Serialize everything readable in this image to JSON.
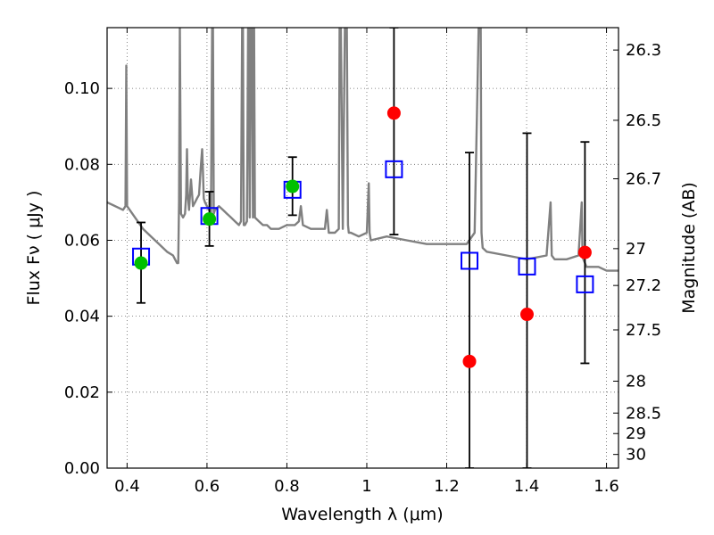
{
  "chart_data": {
    "type": "scatter",
    "xlabel": "Wavelength  λ (μm)",
    "ylabel": "Flux  Fν  ( μJy )",
    "ylabel_right": "Magnitude (AB)",
    "xlim": [
      0.35,
      1.63
    ],
    "ylim": [
      0.0,
      0.116
    ],
    "grid": true,
    "x_ticks": [
      0.4,
      0.6,
      0.8,
      1.0,
      1.2,
      1.4,
      1.6
    ],
    "x_tick_labels": [
      "0.4",
      "0.6",
      "0.8",
      "1",
      "1.2",
      "1.4",
      "1.6"
    ],
    "y_ticks": [
      0.0,
      0.02,
      0.04,
      0.06,
      0.08,
      0.1
    ],
    "y_tick_labels": [
      "0.00",
      "0.02",
      "0.04",
      "0.06",
      "0.08",
      "0.10"
    ],
    "right_ticks": [
      {
        "label": "26.3",
        "flux": 0.1101
      },
      {
        "label": "26.5",
        "flux": 0.0916
      },
      {
        "label": "26.7",
        "flux": 0.0762
      },
      {
        "label": "27",
        "flux": 0.0578
      },
      {
        "label": "27.2",
        "flux": 0.0481
      },
      {
        "label": "27.5",
        "flux": 0.0364
      },
      {
        "label": "28",
        "flux": 0.0229
      },
      {
        "label": "28.5",
        "flux": 0.0145
      },
      {
        "label": "29",
        "flux": 0.0091
      },
      {
        "label": "30",
        "flux": 0.0036
      }
    ],
    "colors": {
      "spectrum": "#808080",
      "model_box": "#0000ff",
      "green_points": "#00c000",
      "red_points": "#ff0000",
      "errorbar": "#000000"
    },
    "series": [
      {
        "marker": "circle",
        "color": "#00c000",
        "points": [
          {
            "x": 0.435,
            "y": 0.054,
            "err_low": 0.0435,
            "err_high": 0.0647
          },
          {
            "x": 0.606,
            "y": 0.0656,
            "err_low": 0.0585,
            "err_high": 0.0728
          },
          {
            "x": 0.814,
            "y": 0.0742,
            "err_low": 0.0666,
            "err_high": 0.0819
          }
        ]
      },
      {
        "marker": "circle",
        "color": "#ff0000",
        "points": [
          {
            "x": 1.068,
            "y": 0.0935,
            "err_low": 0.0615,
            "err_high": 0.116
          },
          {
            "x": 1.257,
            "y": 0.0281,
            "err_low": 0.0,
            "err_high": 0.0831
          },
          {
            "x": 1.401,
            "y": 0.0405,
            "err_low": 0.0,
            "err_high": 0.0882
          },
          {
            "x": 1.546,
            "y": 0.0568,
            "err_low": 0.0276,
            "err_high": 0.0859
          }
        ]
      },
      {
        "marker": "square",
        "color": "#0000ff",
        "points": [
          {
            "x": 0.435,
            "y": 0.0557
          },
          {
            "x": 0.606,
            "y": 0.0664
          },
          {
            "x": 0.814,
            "y": 0.0733
          },
          {
            "x": 1.068,
            "y": 0.0787
          },
          {
            "x": 1.257,
            "y": 0.0546
          },
          {
            "x": 1.401,
            "y": 0.0531
          },
          {
            "x": 1.546,
            "y": 0.0484
          }
        ]
      }
    ],
    "spectrum": {
      "x": [
        0.35,
        0.37,
        0.39,
        0.396,
        0.398,
        0.4,
        0.42,
        0.44,
        0.46,
        0.48,
        0.5,
        0.515,
        0.52,
        0.525,
        0.528,
        0.53,
        0.532,
        0.535,
        0.54,
        0.545,
        0.548,
        0.55,
        0.552,
        0.555,
        0.56,
        0.565,
        0.57,
        0.575,
        0.58,
        0.585,
        0.588,
        0.59,
        0.592,
        0.595,
        0.6,
        0.605,
        0.61,
        0.613,
        0.615,
        0.617,
        0.62,
        0.63,
        0.64,
        0.65,
        0.66,
        0.67,
        0.68,
        0.685,
        0.688,
        0.69,
        0.692,
        0.695,
        0.7,
        0.703,
        0.705,
        0.707,
        0.71,
        0.713,
        0.715,
        0.718,
        0.72,
        0.73,
        0.74,
        0.75,
        0.76,
        0.78,
        0.8,
        0.82,
        0.83,
        0.835,
        0.84,
        0.86,
        0.88,
        0.895,
        0.9,
        0.905,
        0.92,
        0.93,
        0.932,
        0.935,
        0.94,
        0.945,
        0.95,
        0.953,
        0.955,
        0.96,
        0.98,
        1.0,
        1.005,
        1.007,
        1.01,
        1.05,
        1.1,
        1.15,
        1.2,
        1.25,
        1.27,
        1.28,
        1.282,
        1.285,
        1.287,
        1.29,
        1.3,
        1.35,
        1.4,
        1.45,
        1.46,
        1.463,
        1.47,
        1.5,
        1.53,
        1.538,
        1.54,
        1.542,
        1.55,
        1.58,
        1.6,
        1.63
      ],
      "y": [
        0.07,
        0.069,
        0.068,
        0.069,
        0.106,
        0.069,
        0.066,
        0.063,
        0.061,
        0.059,
        0.057,
        0.056,
        0.055,
        0.054,
        0.054,
        0.07,
        0.116,
        0.067,
        0.066,
        0.067,
        0.072,
        0.084,
        0.072,
        0.068,
        0.076,
        0.069,
        0.07,
        0.071,
        0.072,
        0.08,
        0.084,
        0.078,
        0.071,
        0.07,
        0.069,
        0.068,
        0.067,
        0.116,
        0.116,
        0.067,
        0.068,
        0.069,
        0.068,
        0.067,
        0.066,
        0.065,
        0.064,
        0.065,
        0.116,
        0.116,
        0.064,
        0.064,
        0.065,
        0.116,
        0.116,
        0.066,
        0.116,
        0.116,
        0.066,
        0.116,
        0.066,
        0.065,
        0.064,
        0.064,
        0.063,
        0.063,
        0.064,
        0.064,
        0.065,
        0.069,
        0.064,
        0.063,
        0.063,
        0.063,
        0.068,
        0.062,
        0.062,
        0.063,
        0.116,
        0.116,
        0.063,
        0.116,
        0.116,
        0.064,
        0.062,
        0.062,
        0.061,
        0.062,
        0.075,
        0.062,
        0.06,
        0.061,
        0.06,
        0.059,
        0.059,
        0.059,
        0.062,
        0.116,
        0.116,
        0.116,
        0.062,
        0.058,
        0.057,
        0.056,
        0.055,
        0.056,
        0.07,
        0.056,
        0.055,
        0.055,
        0.056,
        0.07,
        0.056,
        0.055,
        0.053,
        0.053,
        0.052,
        0.052
      ]
    }
  }
}
